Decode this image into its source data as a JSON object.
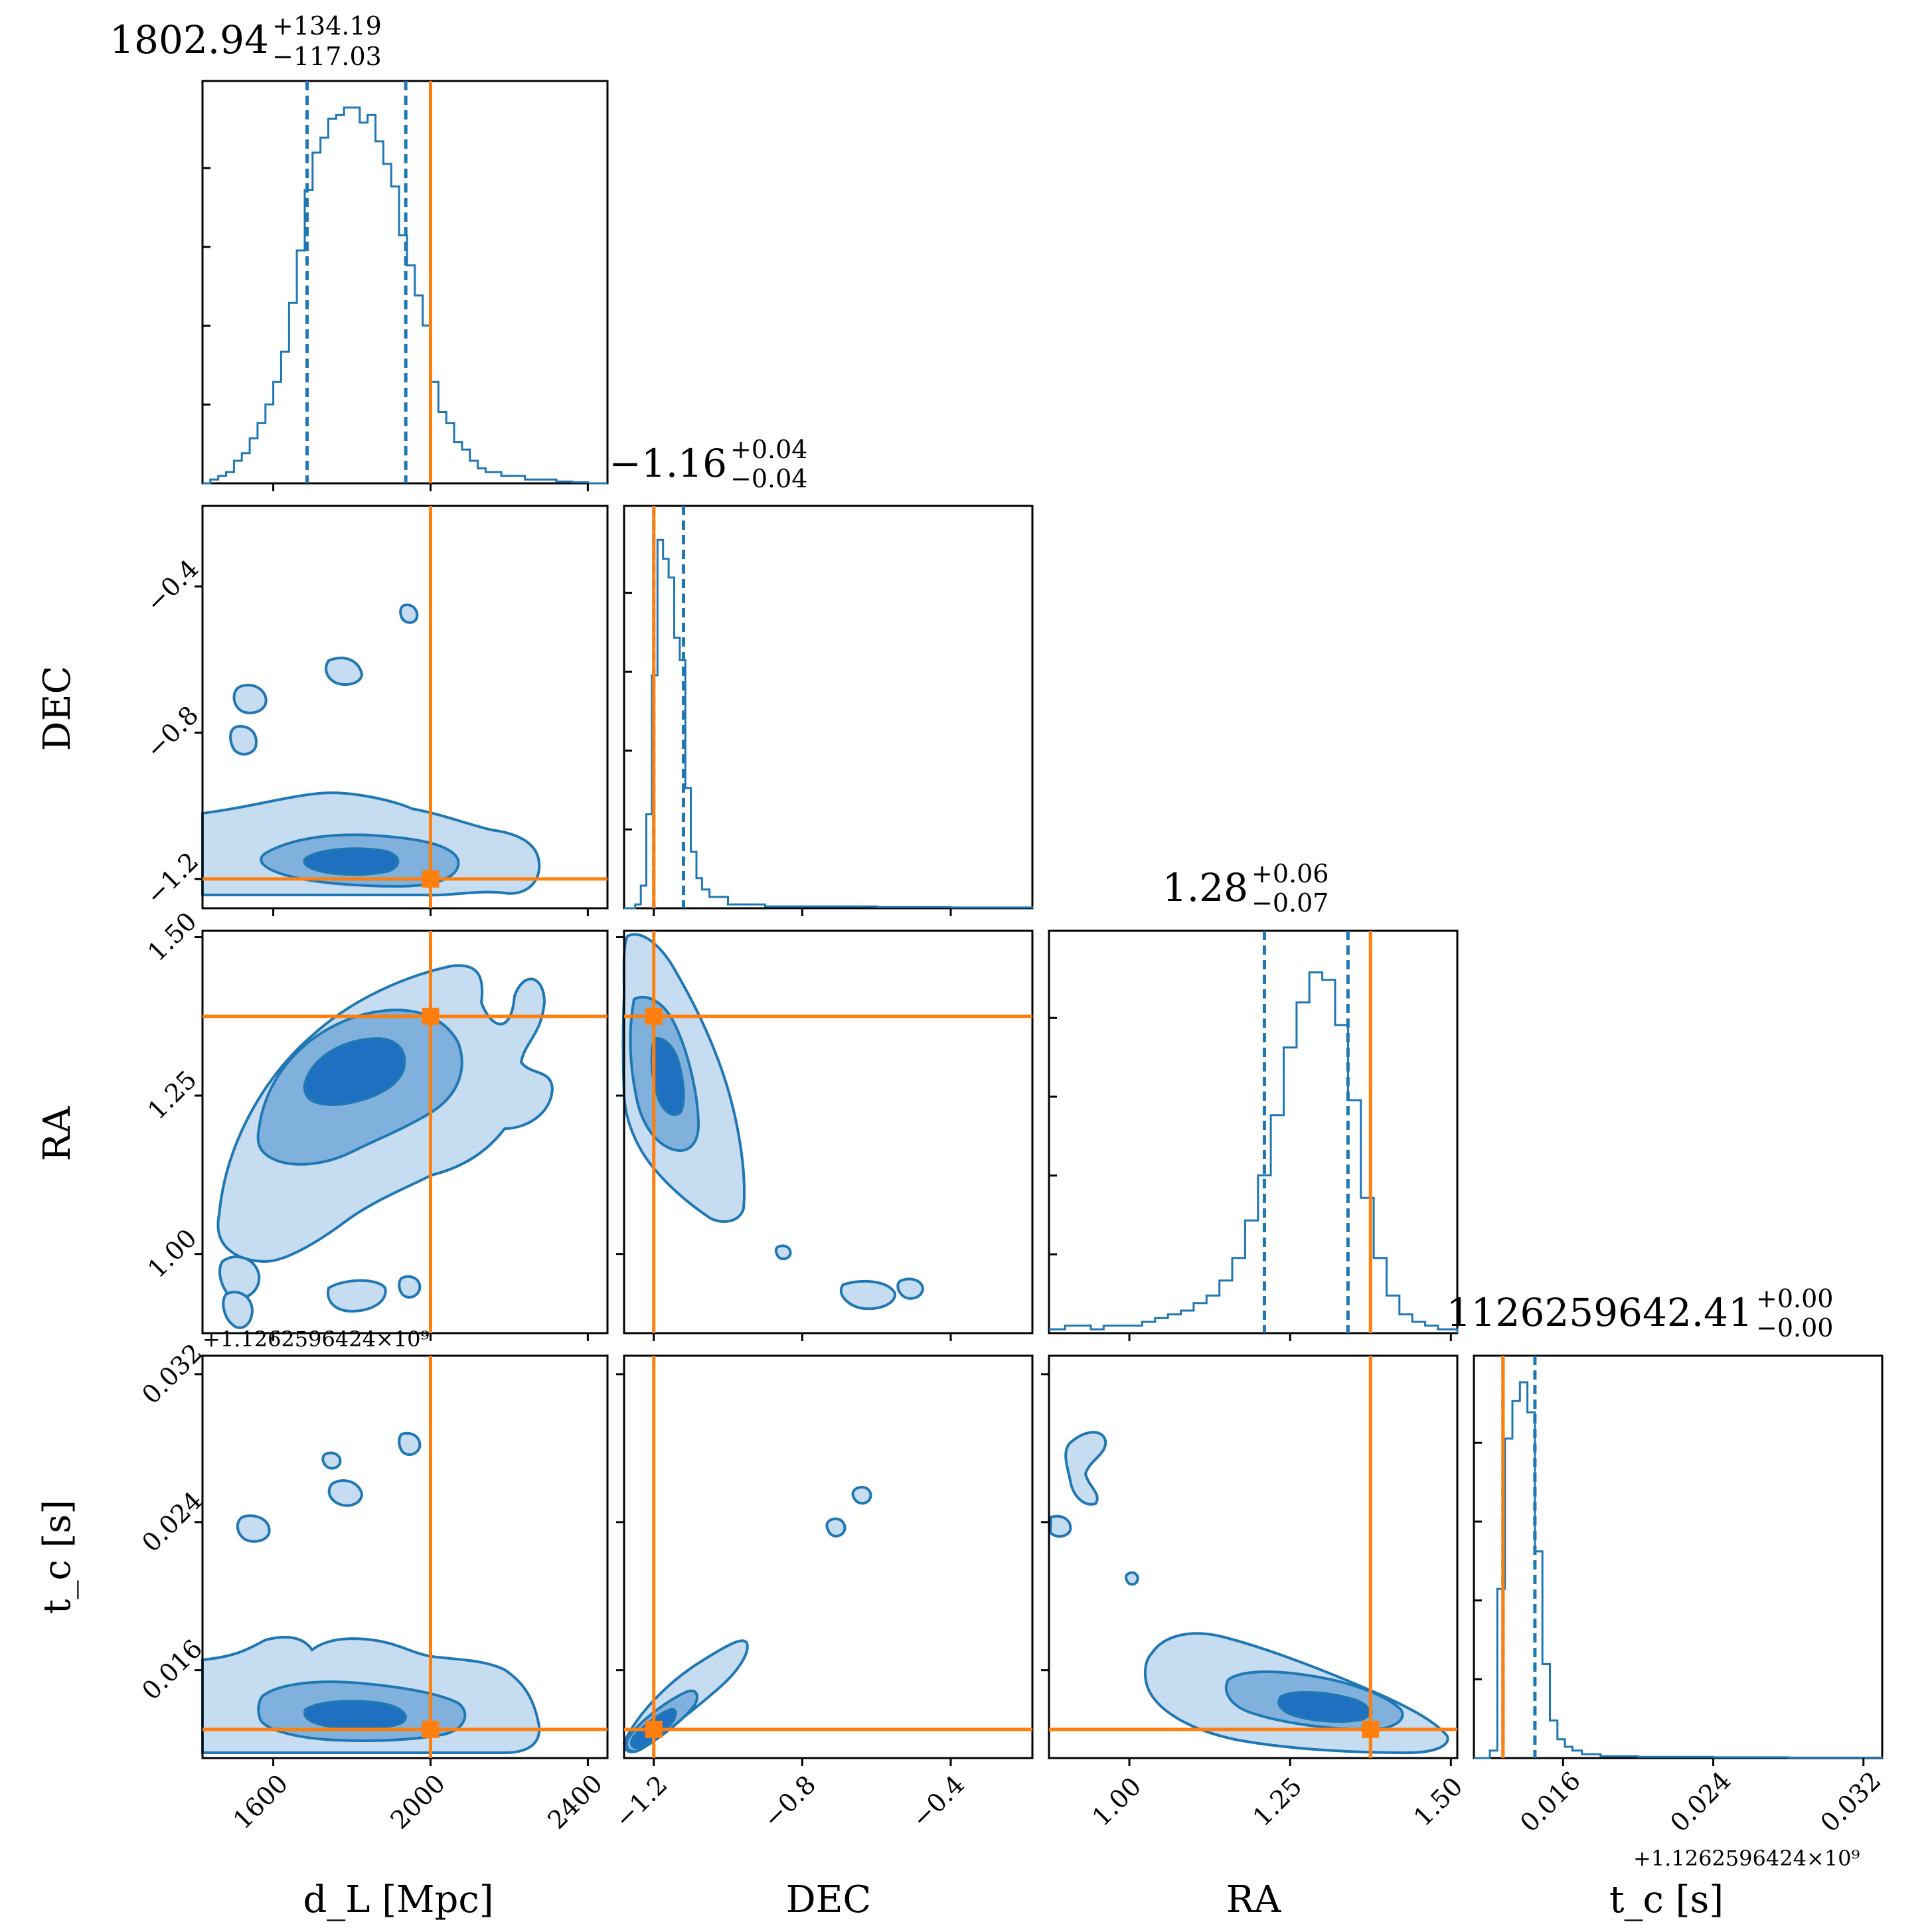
{
  "colors": {
    "contour_light": "#c6dcf0",
    "contour_mid": "#7fb1dc",
    "contour_dark": "#1f70c0",
    "hist_line": "#1f77b4",
    "truth": "#ff7f0e"
  },
  "chart_data": {
    "type": "corner",
    "parameters": [
      "dL",
      "DEC",
      "RA",
      "tc"
    ],
    "axis_labels": {
      "dL": "d_L [Mpc]",
      "DEC": "DEC",
      "RA": "RA",
      "tc": "t_c [s]"
    },
    "offset_text": "+1.1262596424×10⁹",
    "titles": [
      {
        "param": "dL",
        "median": "1802.94",
        "plus": "+134.19",
        "minus": "−117.03"
      },
      {
        "param": "DEC",
        "median": "−1.16",
        "plus": "+0.04",
        "minus": "−0.04"
      },
      {
        "param": "RA",
        "median": "1.28",
        "plus": "+0.06",
        "minus": "−0.07"
      },
      {
        "param": "tc",
        "median": "1126259642.41",
        "plus": "+0.00",
        "minus": "−0.00"
      }
    ],
    "ranges": {
      "dL": [
        1420,
        2450
      ],
      "DEC": [
        -1.28,
        -0.18
      ],
      "RA": [
        0.875,
        1.51
      ],
      "tc": [
        0.01125,
        0.033
      ]
    },
    "ticks": {
      "dL": [
        "1600",
        "2000",
        "2400"
      ],
      "DEC": [
        "−1.2",
        "−0.8",
        "−0.4"
      ],
      "RA": [
        "1.00",
        "1.25",
        "1.50"
      ],
      "tc": [
        "0.016",
        "0.024",
        "0.032"
      ]
    },
    "truths": {
      "dL": 2000,
      "DEC": -1.2,
      "RA": 1.375,
      "tc": 0.0128
    },
    "quantiles": {
      "dL": [
        1686,
        1937
      ],
      "DEC": [
        -1.2,
        -1.12
      ],
      "RA": [
        1.21,
        1.34
      ],
      "tc": [
        0.0128,
        0.0145
      ]
    },
    "histograms": {
      "dL": {
        "x": [
          1420,
          1440,
          1460,
          1480,
          1500,
          1520,
          1540,
          1560,
          1580,
          1600,
          1620,
          1640,
          1660,
          1680,
          1700,
          1720,
          1740,
          1760,
          1780,
          1800,
          1820,
          1840,
          1860,
          1880,
          1900,
          1920,
          1940,
          1960,
          1980,
          2000,
          2020,
          2040,
          2060,
          2080,
          2100,
          2120,
          2140,
          2160,
          2180,
          2200,
          2240,
          2280,
          2320,
          2360,
          2400
        ],
        "y": [
          0.0,
          0.01,
          0.02,
          0.03,
          0.06,
          0.08,
          0.12,
          0.16,
          0.21,
          0.27,
          0.35,
          0.48,
          0.62,
          0.78,
          0.88,
          0.92,
          0.97,
          0.98,
          1.0,
          1.0,
          0.96,
          0.98,
          0.91,
          0.85,
          0.79,
          0.66,
          0.58,
          0.5,
          0.42,
          0.27,
          0.19,
          0.16,
          0.11,
          0.09,
          0.06,
          0.04,
          0.03,
          0.03,
          0.02,
          0.02,
          0.01,
          0.01,
          0.005,
          0.003,
          0.0
        ]
      },
      "DEC": {
        "x": [
          -1.28,
          -1.25,
          -1.235,
          -1.22,
          -1.205,
          -1.19,
          -1.175,
          -1.16,
          -1.145,
          -1.13,
          -1.115,
          -1.1,
          -1.085,
          -1.07,
          -1.05,
          -1.0,
          -0.9,
          -0.8,
          -0.6,
          -0.4,
          -0.18
        ],
        "y": [
          0.0,
          0.01,
          0.06,
          0.25,
          0.62,
          0.98,
          0.93,
          0.88,
          0.72,
          0.66,
          0.32,
          0.15,
          0.08,
          0.05,
          0.03,
          0.01,
          0.005,
          0.005,
          0.003,
          0.002,
          0.0
        ]
      },
      "RA": {
        "x": [
          0.875,
          0.9,
          0.92,
          0.94,
          0.96,
          0.98,
          1.0,
          1.02,
          1.04,
          1.06,
          1.08,
          1.1,
          1.12,
          1.14,
          1.16,
          1.18,
          1.2,
          1.22,
          1.24,
          1.26,
          1.28,
          1.3,
          1.32,
          1.34,
          1.36,
          1.38,
          1.4,
          1.42,
          1.44,
          1.46,
          1.48,
          1.51
        ],
        "y": [
          0.01,
          0.02,
          0.02,
          0.01,
          0.02,
          0.02,
          0.02,
          0.03,
          0.04,
          0.05,
          0.06,
          0.08,
          0.1,
          0.14,
          0.2,
          0.3,
          0.42,
          0.58,
          0.76,
          0.88,
          0.96,
          0.94,
          0.82,
          0.62,
          0.36,
          0.2,
          0.1,
          0.05,
          0.03,
          0.02,
          0.01,
          0.0
        ]
      },
      "tc": {
        "x": [
          0.01125,
          0.0121,
          0.0125,
          0.0129,
          0.0133,
          0.0137,
          0.0141,
          0.0145,
          0.0149,
          0.0153,
          0.0157,
          0.0161,
          0.0165,
          0.017,
          0.018,
          0.02,
          0.024,
          0.028,
          0.033
        ],
        "y": [
          0.0,
          0.02,
          0.45,
          0.85,
          0.95,
          1.0,
          0.92,
          0.55,
          0.25,
          0.1,
          0.05,
          0.03,
          0.02,
          0.01,
          0.005,
          0.003,
          0.002,
          0.001,
          0.0
        ]
      }
    }
  }
}
